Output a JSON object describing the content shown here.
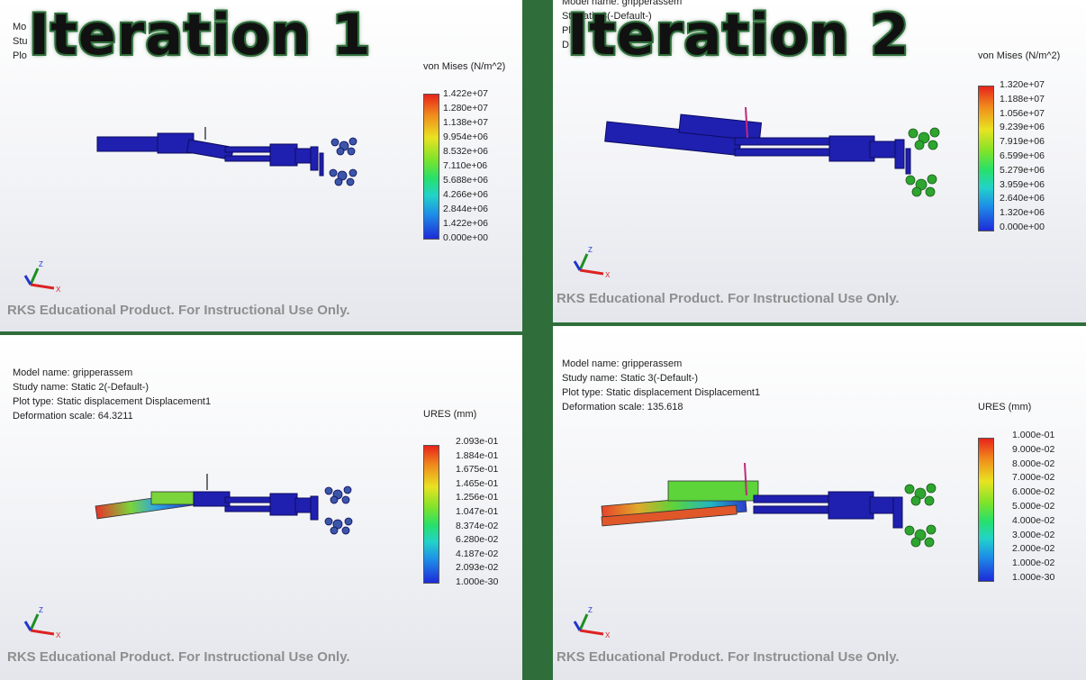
{
  "titles": {
    "left": "Iteration 1",
    "right": "Iteration 2"
  },
  "panels": {
    "tl": {
      "info": [
        "Mo",
        "Stu",
        "Plo"
      ],
      "legend_title": "von Mises (N/m^2)",
      "ticks": [
        "1.422e+07",
        "1.280e+07",
        "1.138e+07",
        "9.954e+06",
        "8.532e+06",
        "7.110e+06",
        "5.688e+06",
        "4.266e+06",
        "2.844e+06",
        "1.422e+06",
        "0.000e+00"
      ],
      "watermark": "RKS Educational Product. For Instructional Use Only."
    },
    "tr": {
      "info": [
        "Model name: gripperassem",
        "St Static 3(-Default-)",
        "Pl",
        "D"
      ],
      "legend_title": "von Mises (N/m^2)",
      "ticks": [
        "1.320e+07",
        "1.188e+07",
        "1.056e+07",
        "9.239e+06",
        "7.919e+06",
        "6.599e+06",
        "5.279e+06",
        "3.959e+06",
        "2.640e+06",
        "1.320e+06",
        "0.000e+00"
      ],
      "watermark": "RKS Educational Product. For Instructional Use Only."
    },
    "bl": {
      "info": [
        "Model name: gripperassem",
        "Study name: Static 2(-Default-)",
        "Plot type: Static displacement Displacement1",
        "Deformation scale: 64.3211"
      ],
      "legend_title": "URES (mm)",
      "ticks": [
        "2.093e-01",
        "1.884e-01",
        "1.675e-01",
        "1.465e-01",
        "1.256e-01",
        "1.047e-01",
        "8.374e-02",
        "6.280e-02",
        "4.187e-02",
        "2.093e-02",
        "1.000e-30"
      ],
      "watermark": "RKS Educational Product. For Instructional Use Only."
    },
    "br": {
      "info": [
        "Model name: gripperassem",
        "Study name: Static 3(-Default-)",
        "Plot type: Static displacement Displacement1",
        "Deformation scale: 135.618"
      ],
      "legend_title": "URES (mm)",
      "ticks": [
        "1.000e-01",
        "9.000e-02",
        "8.000e-02",
        "7.000e-02",
        "6.000e-02",
        "5.000e-02",
        "4.000e-02",
        "3.000e-02",
        "2.000e-02",
        "1.000e-02",
        "1.000e-30"
      ],
      "watermark": "RKS Educational Product. For Instructional Use Only."
    }
  },
  "triad_labels": {
    "z": "Z",
    "x": "X"
  },
  "colors": {
    "divider": "#2f6e3a",
    "stress_model": "#1f1fb0",
    "title_stroke": "#2f6e3a"
  }
}
